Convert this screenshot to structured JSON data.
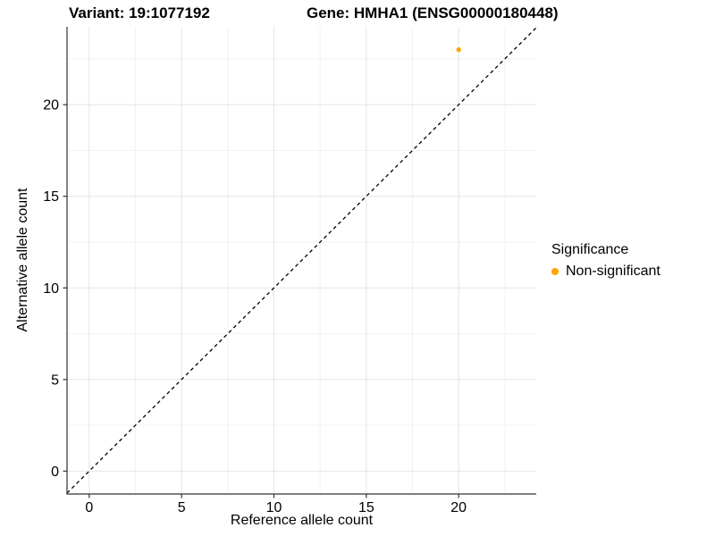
{
  "figure": {
    "title_left": "Variant: 19:1077192",
    "title_right": "Gene: HMHA1 (ENSG00000180448)"
  },
  "colors": {
    "point": "#FFA500",
    "grid_major": "#E4E4E4",
    "grid_minor": "#F2F2F2",
    "axis_line": "#333333",
    "identity_line": "#000000",
    "text": "#000000",
    "background": "#FFFFFF"
  },
  "chart_data": {
    "type": "scatter",
    "title_left": "Variant: 19:1077192",
    "title_right": "Gene: HMHA1 (ENSG00000180448)",
    "xlabel": "Reference allele count",
    "ylabel": "Alternative allele count",
    "xlim": [
      -1.2,
      24.2
    ],
    "ylim": [
      -1.25,
      24.25
    ],
    "x_ticks": [
      0,
      5,
      10,
      15,
      20
    ],
    "y_ticks": [
      0,
      5,
      10,
      15,
      20
    ],
    "x_minor_ticks": [
      2.5,
      7.5,
      12.5,
      17.5,
      22.5
    ],
    "y_minor_ticks": [
      2.5,
      7.5,
      12.5,
      17.5,
      22.5
    ],
    "grid": "major+minor",
    "identity_line": {
      "equation": "y = x",
      "style": "dashed",
      "color": "#000000"
    },
    "series": [
      {
        "name": "Non-significant",
        "color": "#FFA500",
        "point_radius": 2.7,
        "points": [
          {
            "x": 20,
            "y": 23
          }
        ]
      }
    ],
    "legend": {
      "title": "Significance",
      "position": "right-center",
      "entries": [
        {
          "label": "Non-significant",
          "color": "#FFA500"
        }
      ]
    }
  }
}
